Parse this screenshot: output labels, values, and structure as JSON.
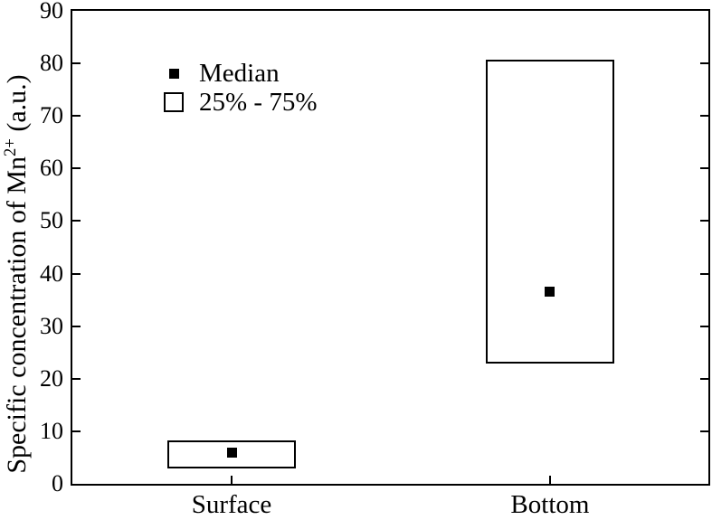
{
  "figure": {
    "background": "#ffffff",
    "colors": {
      "axis": "#000000",
      "text": "#000000",
      "box_edge": "#000000",
      "median_marker": "#000000"
    }
  },
  "chart_data": {
    "type": "box",
    "title": "",
    "xlabel": "",
    "ylabel": "Specific concentration of Mn2+ (a.u.)",
    "ylabel_parts": {
      "pre": "Specific concentration of Mn",
      "sup": "2+",
      "post": " (a.u.)"
    },
    "categories": [
      "Surface",
      "Bottom"
    ],
    "series": [
      {
        "category": "Surface",
        "q1": 3.0,
        "median": 6.0,
        "q3": 8.3
      },
      {
        "category": "Bottom",
        "q1": 22.8,
        "median": 36.5,
        "q3": 80.7
      }
    ],
    "ylim": [
      0,
      90
    ],
    "yticks": [
      0,
      10,
      20,
      30,
      40,
      50,
      60,
      70,
      80,
      90
    ],
    "grid": false,
    "legend": {
      "position": "top-left-inside",
      "entries": [
        {
          "marker": "filled-square",
          "label": "Median"
        },
        {
          "marker": "open-square",
          "label": "25% - 75%"
        }
      ]
    }
  }
}
